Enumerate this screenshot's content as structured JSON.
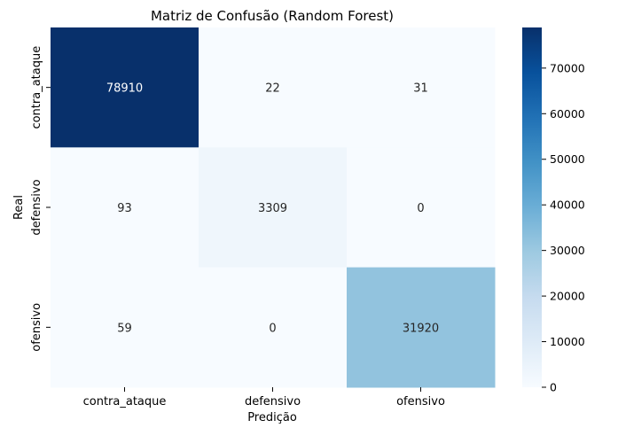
{
  "chart_data": {
    "type": "heatmap",
    "title": "Matriz de Confusão (Random Forest)",
    "xlabel": "Predição",
    "ylabel": "Real",
    "x_categories": [
      "contra_ataque",
      "defensivo",
      "ofensivo"
    ],
    "y_categories": [
      "contra_ataque",
      "defensivo",
      "ofensivo"
    ],
    "values": [
      [
        78910,
        22,
        31
      ],
      [
        93,
        3309,
        0
      ],
      [
        59,
        0,
        31920
      ]
    ],
    "colormap": "Blues",
    "colorbar": {
      "range": [
        0,
        78910
      ],
      "ticks": [
        0,
        10000,
        20000,
        30000,
        40000,
        50000,
        60000,
        70000
      ]
    },
    "annotation_colors": {
      "light_cells": "#262626",
      "dark_cells": "#ffffff"
    }
  }
}
